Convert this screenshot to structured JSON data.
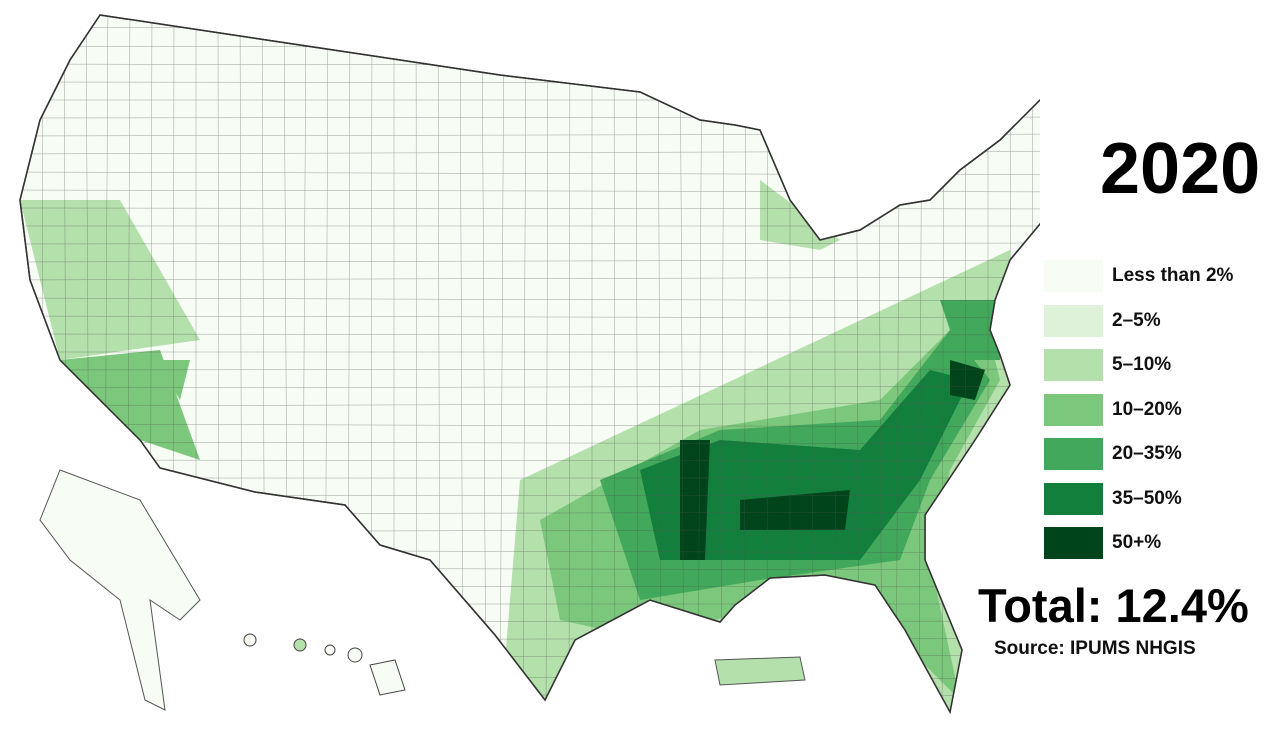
{
  "title": "2020",
  "legend": [
    {
      "label": "Less than 2%",
      "color": "#f7fcf5"
    },
    {
      "label": "2–5%",
      "color": "#ddf2d8"
    },
    {
      "label": "5–10%",
      "color": "#b3e0ab"
    },
    {
      "label": "10–20%",
      "color": "#7bc77b"
    },
    {
      "label": "20–35%",
      "color": "#41a85c"
    },
    {
      "label": "35–50%",
      "color": "#137f3d"
    },
    {
      "label": "50+%",
      "color": "#00441b"
    }
  ],
  "total": "Total: 12.4%",
  "source": "Source: IPUMS NHGIS",
  "border_color": "#333333"
}
